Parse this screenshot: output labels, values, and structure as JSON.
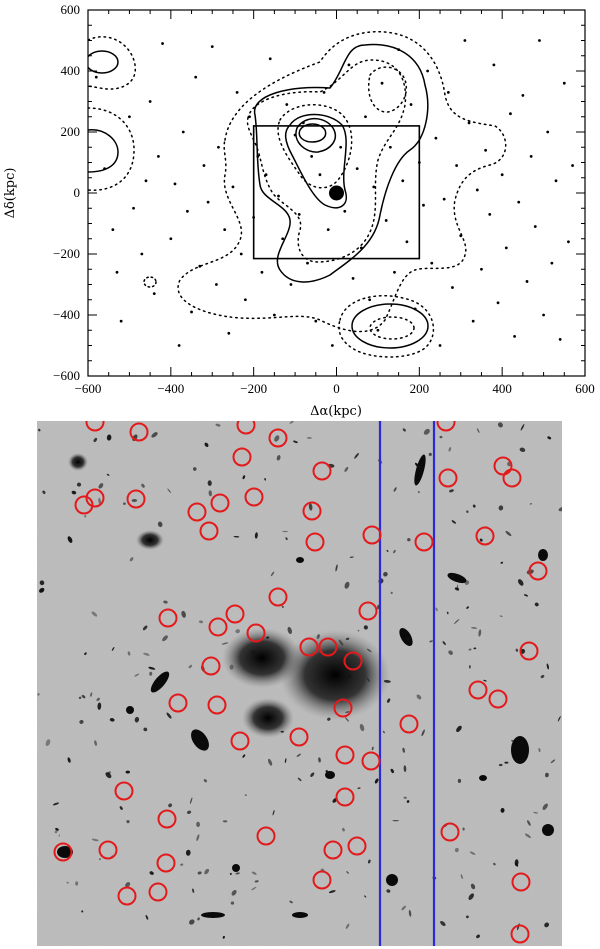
{
  "figure": {
    "top_panel": {
      "xlabel": "Δα(kpc)",
      "ylabel": "Δδ(kpc)",
      "xticks": [
        -600,
        -400,
        -200,
        0,
        200,
        400,
        600
      ],
      "yticks": [
        -600,
        -400,
        -200,
        0,
        200,
        400,
        600
      ],
      "xlim": [
        -600,
        600
      ],
      "ylim": [
        -600,
        600
      ]
    },
    "bottom_panel": {
      "description_free": true
    },
    "colors": {
      "circle": "#e31a1c",
      "stripe": "#2b2bd6",
      "contour": "#000000",
      "point": "#000000"
    }
  },
  "chart_data": {
    "type": "scatter",
    "xlabel": "Δα(kpc)",
    "ylabel": "Δδ(kpc)",
    "xlim": [
      -600,
      600
    ],
    "ylim": [
      -600,
      600
    ],
    "grid": false,
    "box": {
      "x": [
        -200,
        200
      ],
      "y": [
        -215,
        220
      ]
    },
    "center_marker": {
      "x": 0,
      "y": 0
    },
    "points": [
      [
        -580,
        380
      ],
      [
        -560,
        80
      ],
      [
        -540,
        -120
      ],
      [
        -530,
        -260
      ],
      [
        -520,
        -420
      ],
      [
        -500,
        250
      ],
      [
        -490,
        -50
      ],
      [
        -470,
        -200
      ],
      [
        -460,
        40
      ],
      [
        -450,
        300
      ],
      [
        -440,
        -330
      ],
      [
        -430,
        120
      ],
      [
        -420,
        490
      ],
      [
        -400,
        -150
      ],
      [
        -390,
        30
      ],
      [
        -380,
        -500
      ],
      [
        -370,
        200
      ],
      [
        -360,
        -60
      ],
      [
        -350,
        -390
      ],
      [
        -340,
        380
      ],
      [
        -330,
        -240
      ],
      [
        -320,
        90
      ],
      [
        -310,
        -30
      ],
      [
        -300,
        480
      ],
      [
        -290,
        -300
      ],
      [
        -285,
        150
      ],
      [
        -270,
        -120
      ],
      [
        -260,
        -460
      ],
      [
        -250,
        20
      ],
      [
        -240,
        330
      ],
      [
        -230,
        -200
      ],
      [
        -220,
        -350
      ],
      [
        -210,
        250
      ],
      [
        -200,
        -80
      ],
      [
        -190,
        120
      ],
      [
        -180,
        -260
      ],
      [
        -170,
        60
      ],
      [
        -160,
        440
      ],
      [
        -150,
        -400
      ],
      [
        -140,
        -10
      ],
      [
        -130,
        -150
      ],
      [
        -120,
        290
      ],
      [
        -110,
        -300
      ],
      [
        -100,
        190
      ],
      [
        -90,
        -70
      ],
      [
        -80,
        230
      ],
      [
        -70,
        -230
      ],
      [
        -60,
        120
      ],
      [
        -50,
        -420
      ],
      [
        -40,
        60
      ],
      [
        -30,
        330
      ],
      [
        -20,
        -120
      ],
      [
        -10,
        -500
      ],
      [
        10,
        150
      ],
      [
        20,
        -60
      ],
      [
        30,
        420
      ],
      [
        40,
        -280
      ],
      [
        50,
        80
      ],
      [
        60,
        -180
      ],
      [
        70,
        250
      ],
      [
        80,
        -350
      ],
      [
        90,
        20
      ],
      [
        100,
        -450
      ],
      [
        110,
        360
      ],
      [
        120,
        -90
      ],
      [
        130,
        150
      ],
      [
        140,
        -260
      ],
      [
        150,
        470
      ],
      [
        160,
        40
      ],
      [
        170,
        -160
      ],
      [
        180,
        290
      ],
      [
        190,
        -380
      ],
      [
        200,
        100
      ],
      [
        210,
        -40
      ],
      [
        220,
        400
      ],
      [
        230,
        -230
      ],
      [
        240,
        180
      ],
      [
        250,
        -500
      ],
      [
        260,
        -20
      ],
      [
        270,
        330
      ],
      [
        280,
        -310
      ],
      [
        290,
        90
      ],
      [
        300,
        -140
      ],
      [
        310,
        500
      ],
      [
        320,
        230
      ],
      [
        330,
        -420
      ],
      [
        340,
        10
      ],
      [
        350,
        -250
      ],
      [
        360,
        140
      ],
      [
        370,
        -70
      ],
      [
        380,
        420
      ],
      [
        390,
        -360
      ],
      [
        400,
        60
      ],
      [
        410,
        -180
      ],
      [
        420,
        260
      ],
      [
        430,
        -470
      ],
      [
        440,
        -30
      ],
      [
        450,
        320
      ],
      [
        460,
        -290
      ],
      [
        470,
        120
      ],
      [
        480,
        -110
      ],
      [
        490,
        500
      ],
      [
        500,
        -400
      ],
      [
        510,
        200
      ],
      [
        520,
        -230
      ],
      [
        530,
        40
      ],
      [
        540,
        -480
      ],
      [
        550,
        360
      ],
      [
        560,
        -160
      ],
      [
        570,
        90
      ]
    ]
  },
  "image_panel": {
    "circles": [
      [
        95,
        422
      ],
      [
        139,
        432
      ],
      [
        246,
        425
      ],
      [
        278,
        438
      ],
      [
        242,
        457
      ],
      [
        322,
        471
      ],
      [
        446,
        422
      ],
      [
        448,
        478
      ],
      [
        503,
        466
      ],
      [
        512,
        478
      ],
      [
        84,
        505
      ],
      [
        95,
        498
      ],
      [
        136,
        499
      ],
      [
        197,
        512
      ],
      [
        220,
        503
      ],
      [
        254,
        497
      ],
      [
        312,
        511
      ],
      [
        209,
        531
      ],
      [
        315,
        542
      ],
      [
        372,
        535
      ],
      [
        424,
        542
      ],
      [
        485,
        536
      ],
      [
        538,
        571
      ],
      [
        168,
        618
      ],
      [
        218,
        627
      ],
      [
        235,
        614
      ],
      [
        278,
        597
      ],
      [
        256,
        633
      ],
      [
        368,
        611
      ],
      [
        309,
        647
      ],
      [
        328,
        647
      ],
      [
        353,
        661
      ],
      [
        211,
        666
      ],
      [
        178,
        703
      ],
      [
        217,
        705
      ],
      [
        343,
        708
      ],
      [
        478,
        690
      ],
      [
        498,
        699
      ],
      [
        529,
        651
      ],
      [
        240,
        741
      ],
      [
        299,
        737
      ],
      [
        409,
        724
      ],
      [
        345,
        755
      ],
      [
        371,
        761
      ],
      [
        124,
        791
      ],
      [
        345,
        797
      ],
      [
        167,
        819
      ],
      [
        266,
        836
      ],
      [
        450,
        832
      ],
      [
        63,
        852
      ],
      [
        108,
        850
      ],
      [
        166,
        863
      ],
      [
        333,
        850
      ],
      [
        357,
        846
      ],
      [
        322,
        880
      ],
      [
        127,
        896
      ],
      [
        158,
        892
      ],
      [
        521,
        882
      ],
      [
        520,
        934
      ]
    ],
    "stripes": [
      380,
      434
    ]
  }
}
